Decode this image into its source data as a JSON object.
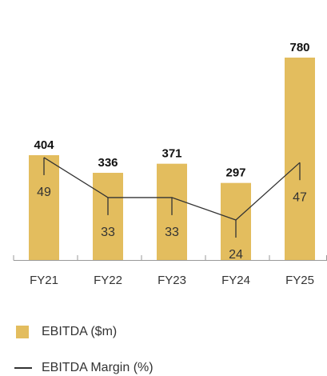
{
  "chart_data": {
    "type": "bar",
    "categories": [
      "FY21",
      "FY22",
      "FY23",
      "FY24",
      "FY25"
    ],
    "ylim": [
      0,
      780
    ],
    "y2lim": [
      8,
      89
    ],
    "series": [
      {
        "name": "EBITDA ($m)",
        "color": "#e3bd5e",
        "values": [
          404,
          336,
          371,
          297,
          780
        ]
      },
      {
        "name": "EBITDA Margin (%)",
        "type": "line",
        "axis": "y2",
        "color": "#333333",
        "values": [
          49,
          33,
          33,
          24,
          47
        ]
      }
    ]
  }
}
